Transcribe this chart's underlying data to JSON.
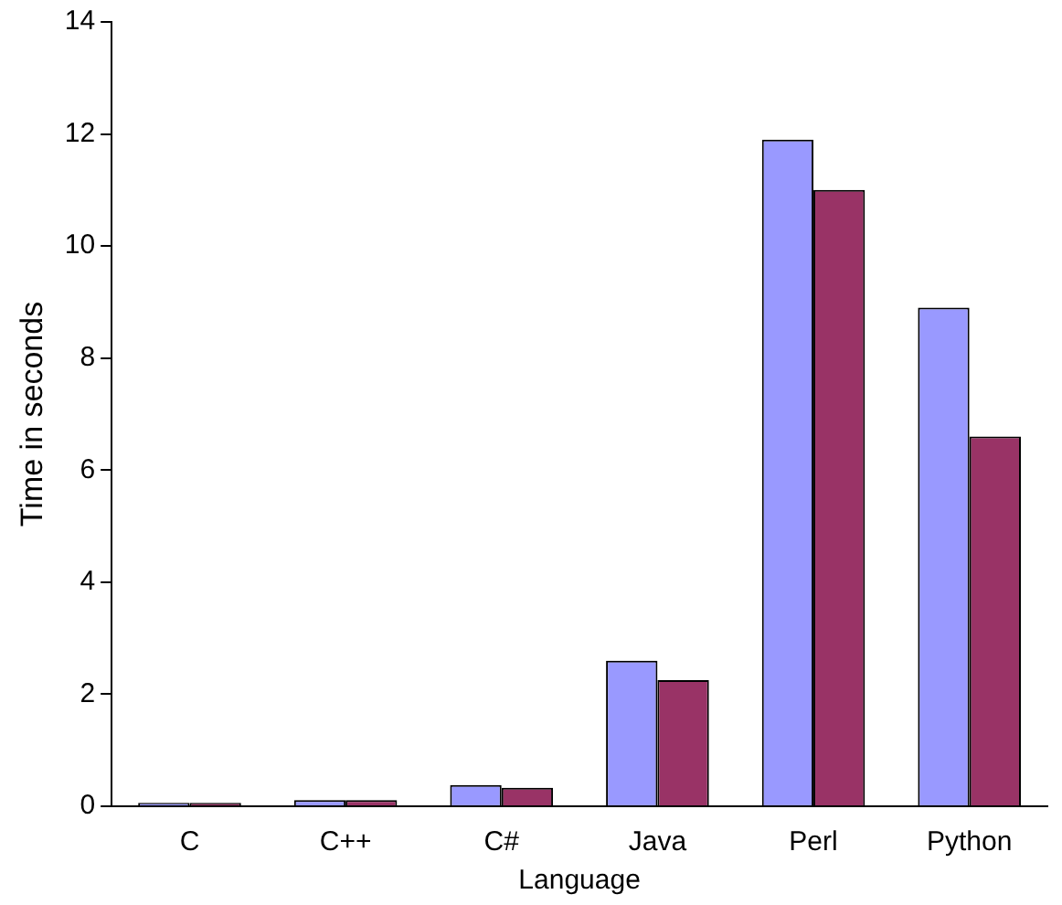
{
  "chart_data": {
    "type": "bar",
    "xlabel": "Language",
    "ylabel": "Time in seconds",
    "categories": [
      "C",
      "C++",
      "C#",
      "Java",
      "Perl",
      "Python"
    ],
    "series": [
      {
        "color": "#9999ff",
        "values": [
          0.06,
          0.11,
          0.38,
          2.6,
          11.9,
          8.9
        ]
      },
      {
        "color": "#993366",
        "values": [
          0.06,
          0.11,
          0.33,
          2.25,
          11.0,
          6.6
        ]
      }
    ],
    "ylim": [
      0,
      14
    ],
    "yticks": [
      0,
      2,
      4,
      6,
      8,
      10,
      12,
      14
    ],
    "grid": false
  }
}
